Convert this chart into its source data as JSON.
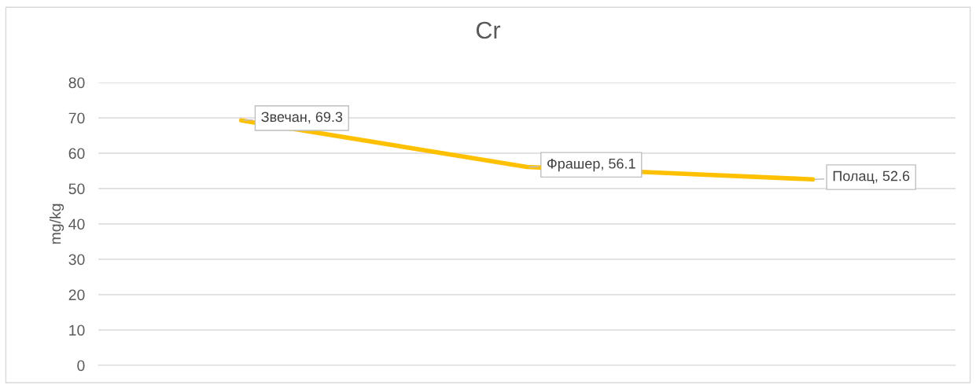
{
  "chart_data": {
    "type": "line",
    "title": "Cr",
    "ylabel": "mg/kg",
    "categories": [
      null,
      null,
      null
    ],
    "series": [
      {
        "color": "#ffc000",
        "values": [
          69.3,
          56.1,
          52.6
        ]
      }
    ],
    "value_labels": [
      "Звечан, 69.3",
      "Фрашер, 56.1",
      "Полац, 52.6"
    ],
    "ylim": [
      0,
      80
    ],
    "yticks": [
      0,
      10,
      20,
      30,
      40,
      50,
      60,
      70,
      80
    ],
    "grid": "y",
    "legend": false,
    "tick_labels": "y",
    "marker": "none",
    "line_style": "solid"
  }
}
